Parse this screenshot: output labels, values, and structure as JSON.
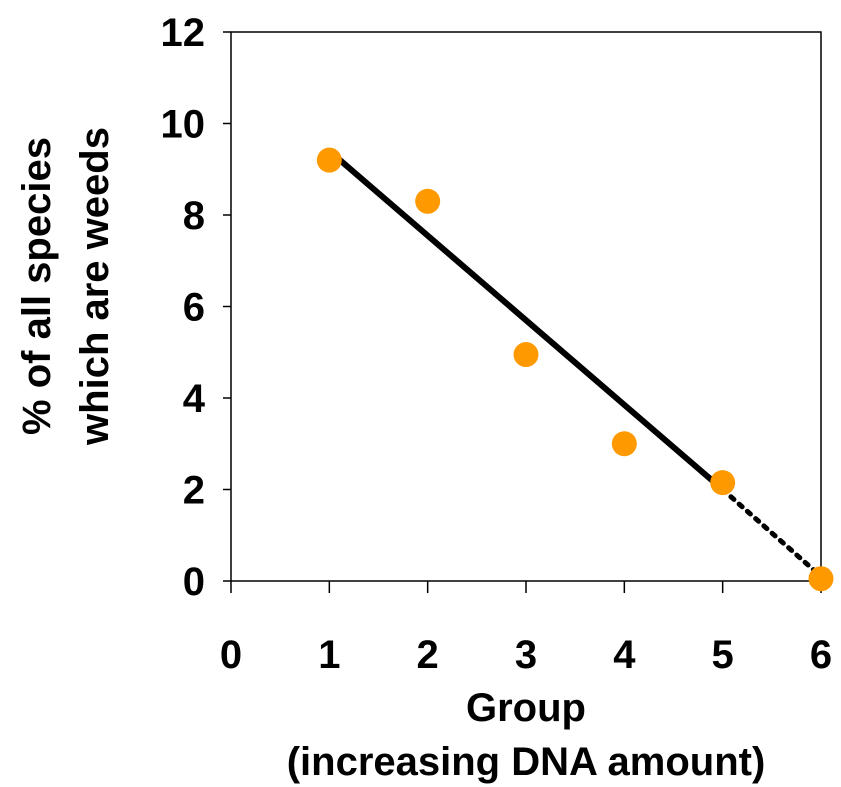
{
  "chart_data": {
    "type": "scatter",
    "xlabel_line1": "Group",
    "xlabel_line2": "(increasing DNA amount)",
    "ylabel_line1": "% of all species",
    "ylabel_line2": "which are weeds",
    "xlim": [
      0,
      6
    ],
    "ylim": [
      0,
      12
    ],
    "xticks": [
      "0",
      "1",
      "2",
      "3",
      "4",
      "5",
      "6"
    ],
    "yticks": [
      "0",
      "2",
      "4",
      "6",
      "8",
      "10",
      "12"
    ],
    "grid": false,
    "points": [
      {
        "x": 1,
        "y": 9.2
      },
      {
        "x": 2,
        "y": 8.3
      },
      {
        "x": 3,
        "y": 4.95
      },
      {
        "x": 4,
        "y": 3.0
      },
      {
        "x": 5,
        "y": 2.15
      },
      {
        "x": 6,
        "y": 0.05
      }
    ],
    "trend_solid": {
      "x": [
        1,
        5
      ],
      "y": [
        9.4,
        2.0
      ]
    },
    "trend_dotted": {
      "x": [
        5,
        6
      ],
      "y": [
        2.0,
        0.1
      ]
    },
    "colors": {
      "point": "#ff9900",
      "line": "#000000",
      "axis": "#000000"
    }
  }
}
